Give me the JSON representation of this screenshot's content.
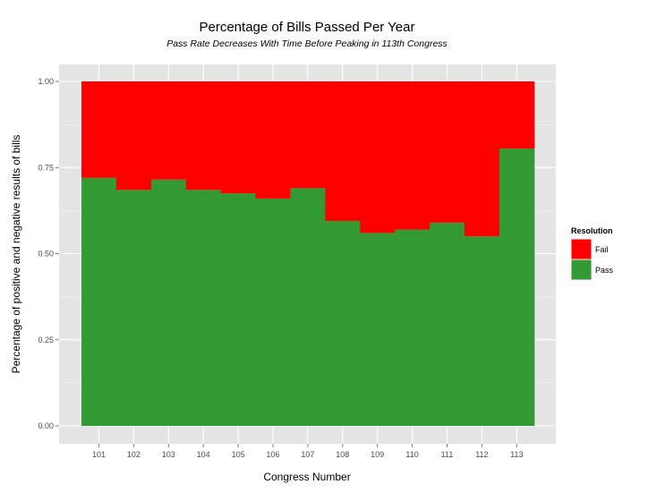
{
  "chart_data": {
    "type": "bar",
    "stacked": true,
    "title": "Percentage of Bills Passed Per Year",
    "subtitle": "Pass Rate Decreases With Time Before Peaking in 113th Congress",
    "xlabel": "Congress Number",
    "ylabel": "Percentage of positive and negative results of bills",
    "categories": [
      "101",
      "102",
      "103",
      "104",
      "105",
      "106",
      "107",
      "108",
      "109",
      "110",
      "111",
      "112",
      "113"
    ],
    "y_ticks": [
      "0.00",
      "0.25",
      "0.50",
      "0.75",
      "1.00"
    ],
    "ylim": [
      0,
      1
    ],
    "grid": true,
    "legend_position": "right",
    "legend_title": "Resolution",
    "series": [
      {
        "name": "Pass",
        "color": "#339933",
        "values": [
          0.72,
          0.685,
          0.715,
          0.685,
          0.675,
          0.66,
          0.69,
          0.595,
          0.56,
          0.57,
          0.59,
          0.55,
          0.805
        ]
      },
      {
        "name": "Fail",
        "color": "#ff0000",
        "values": [
          0.28,
          0.315,
          0.285,
          0.315,
          0.325,
          0.34,
          0.31,
          0.405,
          0.44,
          0.43,
          0.41,
          0.45,
          0.195
        ]
      }
    ],
    "legend_order": [
      "Fail",
      "Pass"
    ],
    "panel_color": "#e5e5e5",
    "grid_color": "#ffffff"
  }
}
